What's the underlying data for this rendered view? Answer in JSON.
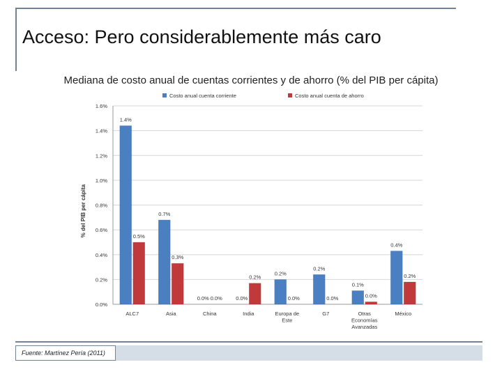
{
  "slide": {
    "title": "Acceso: Pero considerablemente más caro",
    "footer": "Fuente: Martínez Pería (2011)"
  },
  "colors": {
    "series1": "#4a7fc1",
    "series2": "#c0393b",
    "frame": "#6f8296"
  },
  "chart_data": {
    "type": "bar",
    "title": "Mediana de costo anual de cuentas corrientes y de ahorro (% del PIB per cápita)",
    "xlabel": "",
    "ylabel": "% del PIB per cápita",
    "ylim": [
      0,
      1.6
    ],
    "yticks": [
      0.0,
      0.2,
      0.4,
      0.6,
      0.8,
      1.0,
      1.2,
      1.4,
      1.6
    ],
    "ytick_labels": [
      "0.0%",
      "0.2%",
      "0.4%",
      "0.6%",
      "0.8%",
      "1.0%",
      "1.2%",
      "1.4%",
      "1.6%"
    ],
    "grid": true,
    "legend_position": "top",
    "categories": [
      "ALC7",
      "Asia",
      "China",
      "India",
      "Europa de Este",
      "G7",
      "Otras Economías Avanzadas",
      "México"
    ],
    "category_labels": [
      [
        "ALC7"
      ],
      [
        "Asia"
      ],
      [
        "China"
      ],
      [
        "India"
      ],
      [
        "Europa de",
        "Este"
      ],
      [
        "G7"
      ],
      [
        "Otras",
        "Economías",
        "Avanzadas"
      ],
      [
        "México"
      ]
    ],
    "series": [
      {
        "name": "Costo anual cuenta corriente",
        "values": [
          1.44,
          0.68,
          0.0,
          0.0,
          0.2,
          0.24,
          0.11,
          0.43
        ],
        "labels": [
          "1.4%",
          "0.7%",
          "0.0%",
          "0.0%",
          "0.2%",
          "0.2%",
          "0.1%",
          "0.4%"
        ]
      },
      {
        "name": "Costo anual cuenta de ahorro",
        "values": [
          0.5,
          0.33,
          0.0,
          0.17,
          0.0,
          0.0,
          0.02,
          0.18
        ],
        "labels": [
          "0.5%",
          "0.3%",
          "0.0%",
          "0.2%",
          "0.0%",
          "0.0%",
          "0.0%",
          "0.2%"
        ]
      }
    ]
  }
}
